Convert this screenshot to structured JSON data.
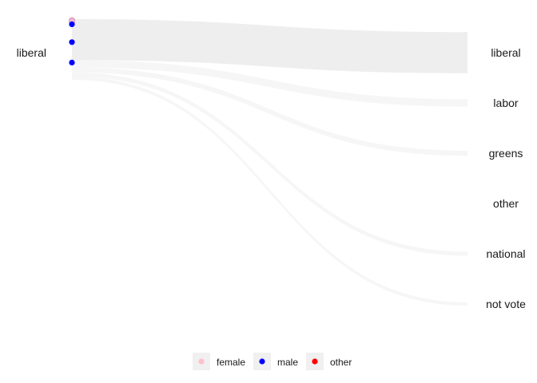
{
  "chart_data": {
    "type": "sankey",
    "source_label": "liberal",
    "targets": [
      "liberal",
      "labor",
      "greens",
      "other",
      "national",
      "not vote"
    ],
    "flows": [
      {
        "from": "liberal",
        "to": "liberal",
        "weight": 50
      },
      {
        "from": "liberal",
        "to": "labor",
        "weight": 9
      },
      {
        "from": "liberal",
        "to": "greens",
        "weight": 6
      },
      {
        "from": "liberal",
        "to": "other",
        "weight": 0
      },
      {
        "from": "liberal",
        "to": "national",
        "weight": 5
      },
      {
        "from": "liberal",
        "to": "not vote",
        "weight": 4
      }
    ],
    "points": [
      {
        "gender": "female",
        "position": 0.02
      },
      {
        "gender": "female",
        "position": 0.04
      },
      {
        "gender": "male",
        "position": 0.08
      },
      {
        "gender": "male",
        "position": 0.36
      },
      {
        "gender": "male",
        "position": 0.68
      }
    ],
    "legend": {
      "placement": "bottom",
      "entries": [
        {
          "label": "female",
          "color": "#ffc0cb"
        },
        {
          "label": "male",
          "color": "#0000ff"
        },
        {
          "label": "other",
          "color": "#ff0000"
        }
      ]
    },
    "colors": {
      "flow": "#ebebeb",
      "legend_key_bg": "#f0f0f0"
    }
  }
}
